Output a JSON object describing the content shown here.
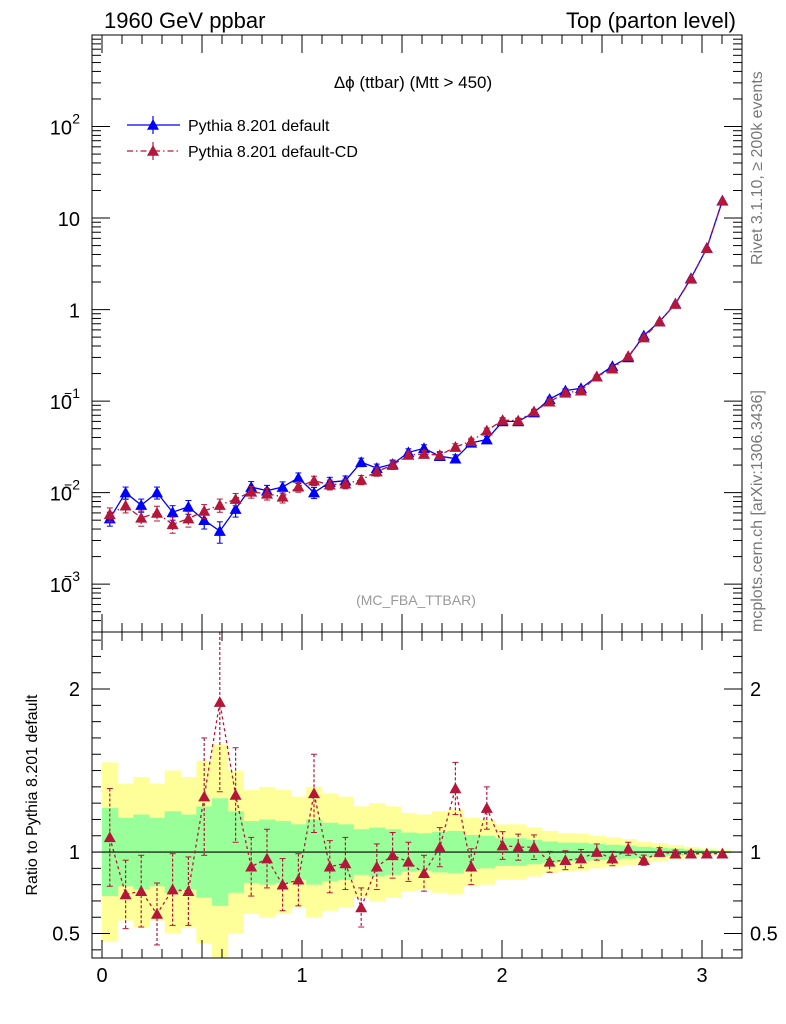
{
  "header": {
    "left": "1960 GeV ppbar",
    "right": "Top (parton level)"
  },
  "side": {
    "rivet": "Rivet 3.1.10, ≥ 200k events",
    "mcplots": "mcplots.cern.ch [arXiv:1306.3436]"
  },
  "chart_data": [
    {
      "type": "line",
      "title": "Δϕ (ttbar) (Mtt > 450)",
      "watermark": "(MC_FBA_TTBAR)",
      "yscale": "log",
      "ylim": [
        0.0003,
        1000
      ],
      "xlim": [
        -0.05,
        3.2
      ],
      "xticks": [
        "0",
        "1",
        "2",
        "3"
      ],
      "yticks": [
        "10^-3",
        "10^-2",
        "10^-1",
        "1",
        "10",
        "10^2"
      ],
      "legend": "top-left",
      "x": [
        0.039,
        0.118,
        0.196,
        0.275,
        0.353,
        0.432,
        0.511,
        0.589,
        0.668,
        0.746,
        0.825,
        0.903,
        0.982,
        1.06,
        1.139,
        1.217,
        1.296,
        1.374,
        1.453,
        1.532,
        1.61,
        1.689,
        1.767,
        1.846,
        1.924,
        2.003,
        2.081,
        2.16,
        2.238,
        2.317,
        2.395,
        2.474,
        2.552,
        2.631,
        2.709,
        2.788,
        2.867,
        2.945,
        3.024,
        3.102
      ],
      "series": [
        {
          "name": "Pythia 8.201 default",
          "color": "#0000ff",
          "marker": "triangle",
          "line": "solid",
          "values": [
            0.0052,
            0.01,
            0.0073,
            0.01,
            0.0061,
            0.007,
            0.005,
            0.0038,
            0.0066,
            0.0115,
            0.0105,
            0.0115,
            0.0145,
            0.01,
            0.013,
            0.0135,
            0.0215,
            0.0185,
            0.0205,
            0.0275,
            0.0305,
            0.025,
            0.0235,
            0.035,
            0.038,
            0.06,
            0.06,
            0.075,
            0.105,
            0.13,
            0.138,
            0.185,
            0.24,
            0.3,
            0.52,
            0.74,
            1.16,
            2.2,
            4.7,
            15.5
          ],
          "errors": [
            0.0009,
            0.0015,
            0.0012,
            0.0015,
            0.0011,
            0.0012,
            0.001,
            0.001,
            0.0012,
            0.0017,
            0.0015,
            0.0016,
            0.0019,
            0.0014,
            0.0017,
            0.0017,
            0.0023,
            0.002,
            0.0022,
            0.0026,
            0.0028,
            0.0025,
            0.0024,
            0.003,
            0.0032,
            0.004,
            0.004,
            0.0045,
            0.0055,
            0.006,
            0.0062,
            0.007,
            0.008,
            0.009,
            0.012,
            0.015,
            0.019,
            0.027,
            0.04,
            0.07
          ]
        },
        {
          "name": "Pythia 8.201 default-CD",
          "color": "#b5173a",
          "marker": "triangle",
          "line": "dash-dot",
          "values": [
            0.0058,
            0.0072,
            0.0053,
            0.006,
            0.0045,
            0.0052,
            0.0063,
            0.0073,
            0.0085,
            0.0102,
            0.0097,
            0.009,
            0.0116,
            0.0135,
            0.0122,
            0.0125,
            0.0138,
            0.017,
            0.02,
            0.0258,
            0.0264,
            0.0257,
            0.0315,
            0.0365,
            0.0475,
            0.062,
            0.0612,
            0.077,
            0.0985,
            0.123,
            0.13,
            0.185,
            0.226,
            0.31,
            0.495,
            0.74,
            1.15,
            2.17,
            4.68,
            15.4
          ],
          "errors": [
            0.001,
            0.0012,
            0.001,
            0.0011,
            0.0009,
            0.001,
            0.0011,
            0.0012,
            0.0013,
            0.0015,
            0.0014,
            0.0013,
            0.0015,
            0.0016,
            0.0015,
            0.0015,
            0.0016,
            0.0019,
            0.0021,
            0.0024,
            0.0024,
            0.0024,
            0.0027,
            0.0029,
            0.0033,
            0.004,
            0.004,
            0.0045,
            0.0052,
            0.0058,
            0.006,
            0.007,
            0.0078,
            0.009,
            0.0115,
            0.0145,
            0.0185,
            0.026,
            0.039,
            0.068
          ]
        }
      ]
    },
    {
      "type": "line",
      "ylabel": "Ratio to Pythia 8.201 default",
      "ylim": [
        0.35,
        2.35
      ],
      "yticks": [
        "0.5",
        "1",
        "2"
      ],
      "reference": 1,
      "x": [
        0.039,
        0.118,
        0.196,
        0.275,
        0.353,
        0.432,
        0.511,
        0.589,
        0.668,
        0.746,
        0.825,
        0.903,
        0.982,
        1.06,
        1.139,
        1.217,
        1.296,
        1.374,
        1.453,
        1.532,
        1.61,
        1.689,
        1.767,
        1.846,
        1.924,
        2.003,
        2.081,
        2.16,
        2.238,
        2.317,
        2.395,
        2.474,
        2.552,
        2.631,
        2.709,
        2.788,
        2.867,
        2.945,
        3.024,
        3.102
      ],
      "band_inner": [
        0.27,
        0.21,
        0.23,
        0.21,
        0.25,
        0.23,
        0.28,
        0.33,
        0.25,
        0.19,
        0.2,
        0.19,
        0.17,
        0.2,
        0.18,
        0.17,
        0.14,
        0.15,
        0.14,
        0.12,
        0.115,
        0.125,
        0.13,
        0.105,
        0.1,
        0.085,
        0.085,
        0.075,
        0.065,
        0.058,
        0.057,
        0.05,
        0.045,
        0.04,
        0.032,
        0.027,
        0.022,
        0.016,
        0.011,
        0.006
      ],
      "band_outer": [
        0.55,
        0.42,
        0.46,
        0.42,
        0.5,
        0.46,
        0.56,
        0.66,
        0.5,
        0.38,
        0.4,
        0.38,
        0.34,
        0.4,
        0.36,
        0.34,
        0.28,
        0.3,
        0.28,
        0.24,
        0.23,
        0.25,
        0.26,
        0.21,
        0.2,
        0.17,
        0.17,
        0.15,
        0.13,
        0.116,
        0.114,
        0.1,
        0.09,
        0.08,
        0.064,
        0.054,
        0.044,
        0.032,
        0.022,
        0.012
      ],
      "series": [
        {
          "name": "Pythia 8.201 default-CD",
          "color": "#b5173a",
          "values": [
            1.09,
            0.74,
            0.76,
            0.62,
            0.77,
            0.76,
            1.34,
            1.92,
            1.35,
            0.91,
            0.96,
            0.8,
            0.83,
            1.36,
            0.91,
            0.93,
            0.66,
            0.91,
            0.98,
            0.94,
            0.87,
            1.03,
            1.39,
            0.91,
            1.27,
            1.04,
            1.03,
            1.03,
            0.94,
            0.95,
            0.96,
            1.0,
            0.96,
            1.02,
            0.95,
            1.0,
            0.99,
            0.99,
            0.99,
            0.99
          ],
          "errors": [
            0.3,
            0.21,
            0.22,
            0.19,
            0.22,
            0.21,
            0.36,
            0.55,
            0.29,
            0.18,
            0.18,
            0.16,
            0.16,
            0.24,
            0.16,
            0.16,
            0.12,
            0.14,
            0.14,
            0.12,
            0.11,
            0.12,
            0.16,
            0.11,
            0.13,
            0.085,
            0.08,
            0.075,
            0.064,
            0.058,
            0.056,
            0.05,
            0.044,
            0.04,
            0.031,
            0.027,
            0.022,
            0.016,
            0.011,
            0.006
          ]
        }
      ]
    }
  ]
}
